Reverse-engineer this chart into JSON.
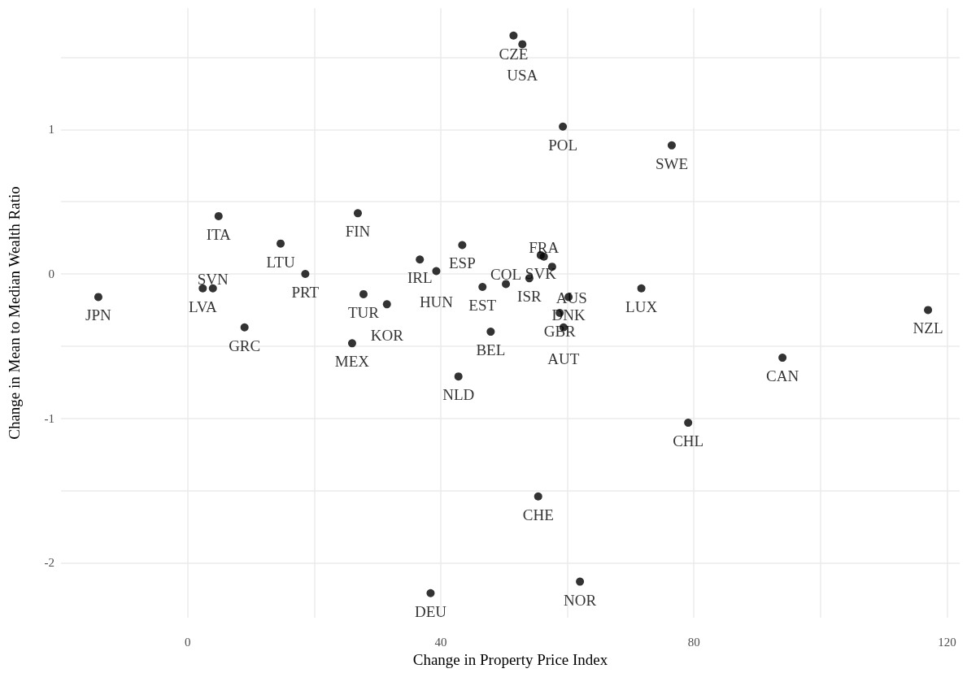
{
  "chart_data": {
    "type": "scatter",
    "xlabel": "Change in Property Price Index",
    "ylabel": "Change in Mean to Median Wealth Ratio",
    "x": [
      -14.1,
      2.4,
      4.0,
      4.9,
      9.0,
      14.7,
      18.6,
      26.9,
      27.8,
      31.5,
      26.0,
      36.7,
      39.3,
      43.4,
      46.6,
      50.3,
      47.9,
      42.8,
      54.0,
      55.8,
      56.3,
      57.6,
      60.2,
      58.8,
      59.4,
      51.5,
      52.9,
      59.3,
      76.5,
      71.7,
      117.0,
      94.0,
      79.1,
      55.4,
      38.4,
      62.0
    ],
    "values": [
      -0.16,
      -0.1,
      -0.1,
      0.4,
      -0.37,
      0.21,
      0.0,
      0.42,
      -0.14,
      -0.21,
      -0.48,
      0.1,
      0.02,
      0.2,
      -0.09,
      -0.07,
      -0.4,
      -0.71,
      -0.03,
      0.13,
      0.12,
      0.05,
      -0.16,
      -0.27,
      -0.37,
      1.65,
      1.59,
      1.02,
      0.89,
      -0.1,
      -0.25,
      -0.58,
      -1.03,
      -1.54,
      -2.21,
      -2.13
    ],
    "value_labels": [
      "JPN",
      "LVA",
      "SVN",
      "ITA",
      "GRC",
      "LTU",
      "PRT",
      "FIN",
      "TUR",
      "KOR",
      "MEX",
      "IRL",
      "HUN",
      "ESP",
      "EST",
      "COL",
      "BEL",
      "NLD",
      "ISR",
      "SVK",
      "FRA",
      "AUS",
      "DNK",
      "GBR",
      "AUT",
      "CZE",
      "USA",
      "POL",
      "SWE",
      "LUX",
      "NZL",
      "CAN",
      "CHL",
      "CHE",
      "DEU",
      "NOR"
    ],
    "color": "#000000",
    "marker": "circle",
    "grid": true,
    "xlim": [
      -20,
      122
    ],
    "xticks": [
      0,
      {
        "value": 20,
        "label": null
      },
      40,
      {
        "value": 60,
        "label": null
      },
      80,
      {
        "value": 100,
        "label": null
      },
      120
    ],
    "ylim": [
      -2.38,
      1.84
    ],
    "yticks": [
      -2,
      {
        "value": -1.5,
        "label": null
      },
      -1,
      {
        "value": -0.5,
        "label": null
      },
      0,
      {
        "value": 0.5,
        "label": null
      },
      1,
      {
        "value": 1.5,
        "label": null
      }
    ]
  }
}
